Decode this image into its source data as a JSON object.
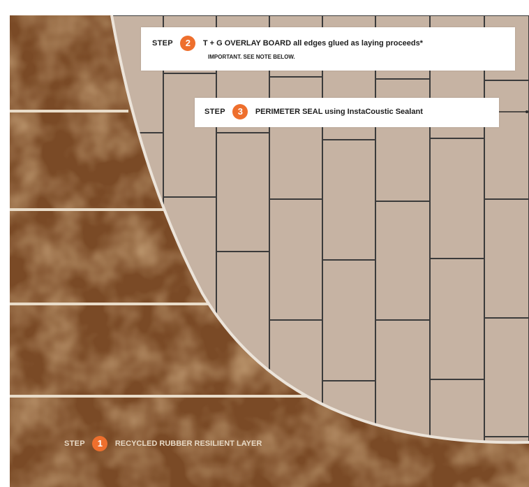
{
  "colors": {
    "rubber": "#7a4a26",
    "board": "#c6b3a3",
    "joint": "#3b3b3b",
    "step_badge": "#ee6f2d"
  },
  "steps": [
    {
      "word": "STEP",
      "number": "1",
      "text": "RECYCLED RUBBER RESILIENT LAYER"
    },
    {
      "word": "STEP",
      "number": "2",
      "text": "T + G OVERLAY BOARD all edges glued as laying proceeds*",
      "note": "IMPORTANT. SEE NOTE BELOW."
    },
    {
      "word": "STEP",
      "number": "3",
      "text": "PERIMETER SEAL using InstaCoustic Sealant"
    }
  ]
}
